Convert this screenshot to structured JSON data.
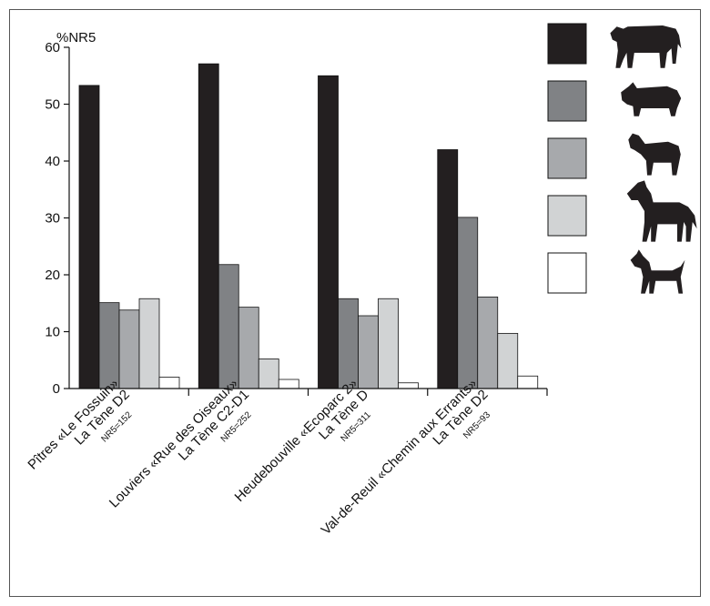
{
  "chart_data": {
    "type": "bar",
    "ylabel": "%NR5",
    "ylim": [
      0,
      60
    ],
    "yticks": [
      0,
      10,
      20,
      30,
      40,
      50,
      60
    ],
    "categories": [
      {
        "lines": [
          "Pîtres «Le Fossuin»",
          "La Tène D2"
        ],
        "count": "NR5=152"
      },
      {
        "lines": [
          "Louviers «Rue des Oiseaux»",
          "La Tène C2-D1"
        ],
        "count": "NR5=252"
      },
      {
        "lines": [
          "Heudebouville «Ecoparc 2»",
          "La Tène D"
        ],
        "count": "NR5=311"
      },
      {
        "lines": [
          "Val-de-Reuil «Chemin aux Errants»",
          "La Tène D2"
        ],
        "count": "NR5=93"
      }
    ],
    "series": [
      {
        "icon": "cattle-icon",
        "color": "#231f20",
        "values": [
          53.3,
          57.1,
          55.0,
          42.0
        ]
      },
      {
        "icon": "pig-icon",
        "color": "#808285",
        "values": [
          15.1,
          21.8,
          15.8,
          30.1
        ]
      },
      {
        "icon": "sheep-goat-icon",
        "color": "#a7a9ac",
        "values": [
          13.8,
          14.3,
          12.8,
          16.1
        ]
      },
      {
        "icon": "horse-icon",
        "color": "#d1d3d4",
        "values": [
          15.8,
          5.2,
          15.8,
          9.7
        ]
      },
      {
        "icon": "dog-icon",
        "color": "#ffffff",
        "values": [
          2.0,
          1.6,
          1.0,
          2.2
        ]
      }
    ],
    "legend_position": "top-right",
    "grid": false
  }
}
